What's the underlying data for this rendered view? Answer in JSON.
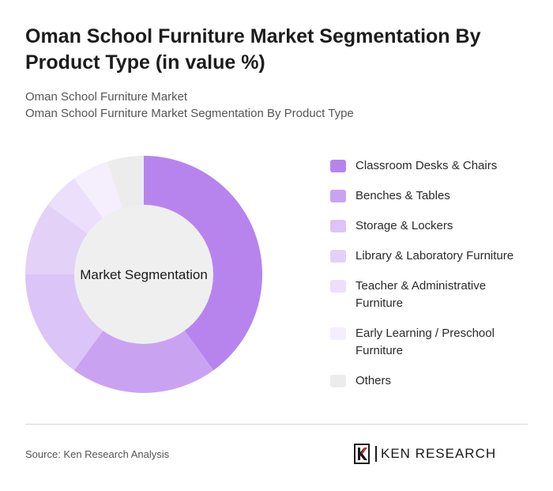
{
  "title": "Oman School Furniture Market Segmentation By Product Type (in value %)",
  "subtitle_1": "Oman School Furniture Market",
  "subtitle_2": "Oman School Furniture Market Segmentation By Product Type",
  "chart_data": {
    "type": "pie",
    "variant": "donut",
    "center_label": "Market Segmentation",
    "categories": [
      "Classroom Desks & Chairs",
      "Benches & Tables",
      "Storage & Lockers",
      "Library & Laboratory Furniture",
      "Teacher & Administrative Furniture",
      "Early Learning / Preschool Furniture",
      "Others"
    ],
    "values": [
      40,
      20,
      15,
      10,
      5,
      5,
      5
    ],
    "colors": [
      "#b784ee",
      "#c9a3f2",
      "#dbc4f7",
      "#e3d1f8",
      "#ecdffb",
      "#f4eefd",
      "#ececec"
    ],
    "legend_position": "right"
  },
  "footer": {
    "source": "Source: Ken Research Analysis",
    "logo_text": "KEN RESEARCH"
  }
}
